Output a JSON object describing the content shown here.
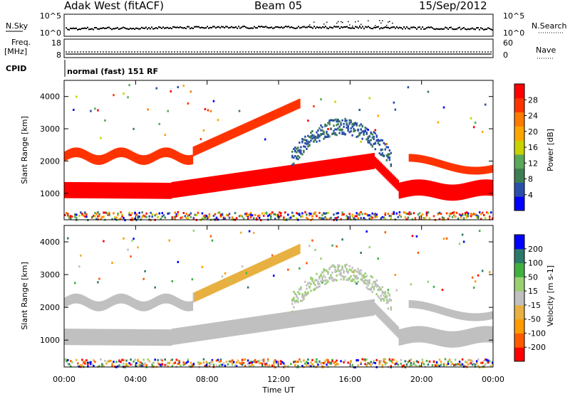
{
  "header": {
    "radar": "Adak West (fitACF)",
    "beam": "Beam 05",
    "date": "15/Sep/2012"
  },
  "top_panel": {
    "left_label": "N.Sky",
    "left_ticks": [
      "10^5",
      "10^0"
    ],
    "right_ticks": [
      "10^5",
      "10^0"
    ],
    "right_label": "N.Search"
  },
  "freq_panel": {
    "left_label_1": "Freq.",
    "left_label_2": "[MHz]",
    "left_ticks": [
      "18",
      "8"
    ],
    "right_ticks": [
      "60",
      "0"
    ],
    "right_label": "Nave"
  },
  "cpid": {
    "label": "CPID",
    "text": "normal (fast) 151 RF"
  },
  "colors": {
    "power": [
      "#0000ff",
      "#2a4faa",
      "#3e7e52",
      "#5aa85a",
      "#c8d200",
      "#ffa500",
      "#ff7a00",
      "#ff3300",
      "#ff0000"
    ],
    "velocity": [
      "#ff0000",
      "#ff5a00",
      "#ff9a00",
      "#e8b040",
      "#c0c0c0",
      "#9ad070",
      "#40b040",
      "#2a7a6a",
      "#0000ff"
    ]
  },
  "chart_data": [
    {
      "type": "heatmap",
      "title": "",
      "xlabel": "",
      "ylabel": "Slant Range [km]",
      "xlim": [
        "00:00",
        "00:00"
      ],
      "ylim": [
        180,
        4500
      ],
      "yticks": [
        "1000",
        "2000",
        "3000",
        "4000"
      ],
      "colorbar_label": "Power [dB]",
      "colorbar_ticks": [
        "4",
        "8",
        "12",
        "16",
        "20",
        "24",
        "28"
      ]
    },
    {
      "type": "heatmap",
      "title": "",
      "xlabel": "Time UT",
      "ylabel": "Slant Range [km]",
      "xlim": [
        "00:00",
        "00:00"
      ],
      "ylim": [
        180,
        4500
      ],
      "xticks": [
        "00:00",
        "04:00",
        "08:00",
        "12:00",
        "16:00",
        "20:00",
        "00:00"
      ],
      "yticks": [
        "1000",
        "2000",
        "3000",
        "4000"
      ],
      "colorbar_label": "Velocity [m s-1]",
      "colorbar_ticks": [
        "-200",
        "-100",
        "-50",
        "-15",
        "15",
        "50",
        "100",
        "200"
      ]
    }
  ]
}
